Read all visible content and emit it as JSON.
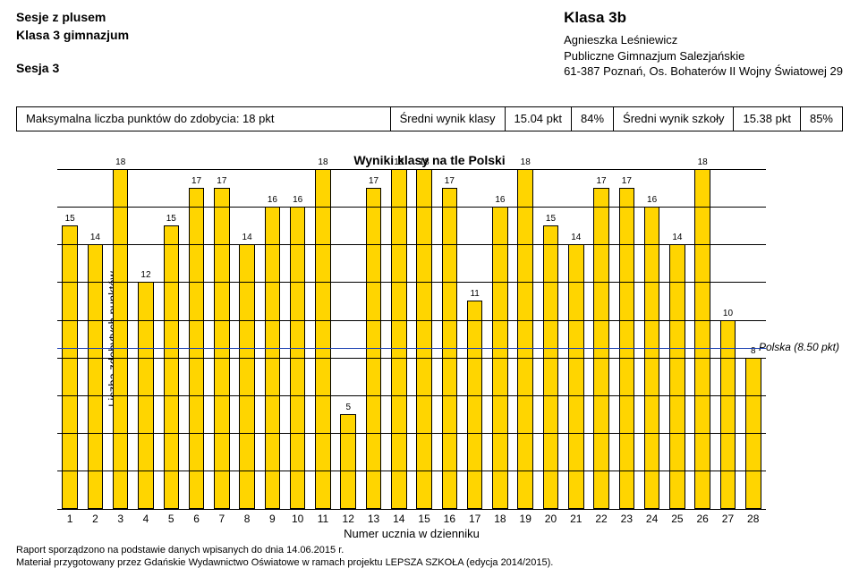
{
  "header": {
    "title_line1": "Sesje z plusem",
    "title_line2": "Klasa 3 gimnazjum",
    "session": "Sesja 3",
    "class_name": "Klasa 3b",
    "teacher": "Agnieszka Leśniewicz",
    "school": "Publiczne Gimnazjum Salezjańskie",
    "address": "61-387 Poznań, Os. Bohaterów II Wojny Światowej 29"
  },
  "stats": {
    "max_points_label": "Maksymalna liczba punktów do zdobycia: 18 pkt",
    "class_avg_label": "Średni wynik klasy",
    "class_avg_value": "15.04 pkt",
    "class_avg_pct": "84%",
    "school_avg_label": "Średni wynik szkoły",
    "school_avg_value": "15.38 pkt",
    "school_avg_pct": "85%"
  },
  "chart": {
    "title": "Wyniki klasy na tle Polski",
    "y_label": "Liczba zdobytych punktów",
    "x_label": "Numer ucznia w dzienniku",
    "y_max": 18,
    "y_grid_step": 2,
    "bar_color": "#ffd500",
    "bar_border": "#000000",
    "grid_color": "#000000",
    "background": "#ffffff",
    "reference": {
      "value": 8.5,
      "label": "Polska (8.50 pkt)",
      "color": "#1a3fb3"
    },
    "values": [
      15,
      14,
      18,
      12,
      15,
      17,
      17,
      14,
      16,
      16,
      18,
      5,
      17,
      18,
      18,
      17,
      11,
      16,
      18,
      15,
      14,
      17,
      17,
      16,
      14,
      18,
      10,
      8
    ],
    "value_label_fontsize": 10,
    "axis_fontsize": 12
  },
  "footer": {
    "line1": "Raport sporządzono na podstawie danych wpisanych do dnia 14.06.2015 r.",
    "line2": "Materiał przygotowany przez Gdańskie Wydawnictwo Oświatowe w ramach projektu LEPSZA SZKOŁA (edycja 2014/2015)."
  }
}
